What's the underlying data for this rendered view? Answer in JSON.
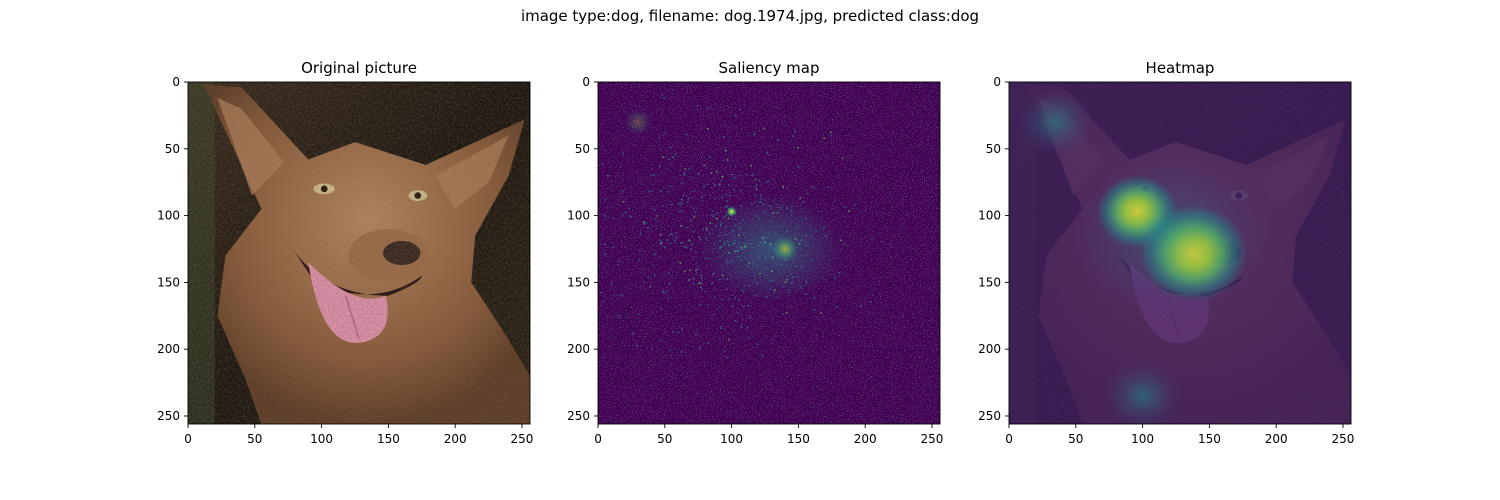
{
  "figure": {
    "suptitle": "image type:dog, filename: dog.1974.jpg, predicted class:dog"
  },
  "chart_data": [
    {
      "type": "heatmap",
      "title": "Original picture",
      "content": "photo",
      "xlim": [
        0,
        256
      ],
      "ylim": [
        256,
        0
      ],
      "xticks": [
        0,
        50,
        100,
        150,
        200,
        250
      ],
      "yticks": [
        0,
        50,
        100,
        150,
        200,
        250
      ],
      "palette": {
        "background": "#2a2218",
        "fur": "#8a5f3e",
        "fur_light": "#b98c66",
        "tongue": "#d98fa8",
        "nose": "#3a2a22"
      }
    },
    {
      "type": "heatmap",
      "title": "Saliency map",
      "content": "saliency",
      "xlim": [
        0,
        256
      ],
      "ylim": [
        256,
        0
      ],
      "xticks": [
        0,
        50,
        100,
        150,
        200,
        250
      ],
      "yticks": [
        0,
        50,
        100,
        150,
        200,
        250
      ],
      "colormap": [
        "#440154",
        "#3b528b",
        "#21918c",
        "#5ec962",
        "#fde725"
      ],
      "hotspots": [
        {
          "x": 100,
          "y": 97,
          "intensity": 1.0
        },
        {
          "x": 140,
          "y": 125,
          "intensity": 0.55
        },
        {
          "x": 30,
          "y": 30,
          "intensity": 0.25
        }
      ]
    },
    {
      "type": "heatmap",
      "title": "Heatmap",
      "content": "heatmap-overlay",
      "xlim": [
        0,
        256
      ],
      "ylim": [
        256,
        0
      ],
      "xticks": [
        0,
        50,
        100,
        150,
        200,
        250
      ],
      "yticks": [
        0,
        50,
        100,
        150,
        200,
        250
      ],
      "colormap": [
        "#440154",
        "#3b528b",
        "#21918c",
        "#5ec962",
        "#fde725"
      ],
      "hotspots": [
        {
          "x": 96,
          "y": 97,
          "intensity": 0.85
        },
        {
          "x": 138,
          "y": 128,
          "intensity": 1.0
        },
        {
          "x": 35,
          "y": 30,
          "intensity": 0.35
        },
        {
          "x": 100,
          "y": 235,
          "intensity": 0.3
        }
      ]
    }
  ]
}
